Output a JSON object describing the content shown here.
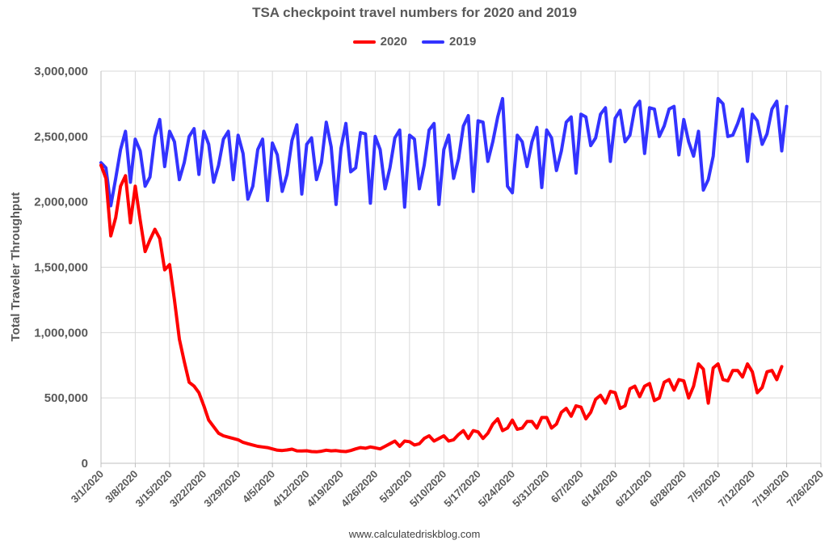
{
  "chart_data": {
    "type": "line",
    "title": "TSA checkpoint travel numbers for 2020 and 2019",
    "ylabel": "Total Traveler Throughput",
    "xlabel": "",
    "ylim": [
      0,
      3000000
    ],
    "yticks": [
      0,
      500000,
      1000000,
      1500000,
      2000000,
      2500000,
      3000000
    ],
    "ytick_labels": [
      "0",
      "500,000",
      "1,000,000",
      "1,500,000",
      "2,000,000",
      "2,500,000",
      "3,000,000"
    ],
    "xticks": [
      "3/1/2020",
      "3/8/2020",
      "3/15/2020",
      "3/22/2020",
      "3/29/2020",
      "4/5/2020",
      "4/12/2020",
      "4/19/2020",
      "4/26/2020",
      "5/3/2020",
      "5/10/2020",
      "5/17/2020",
      "5/24/2020",
      "5/31/2020",
      "6/7/2020",
      "6/14/2020",
      "6/21/2020",
      "6/28/2020",
      "7/5/2020",
      "7/12/2020",
      "7/19/2020",
      "7/26/2020"
    ],
    "x_start": "3/1/2020",
    "x_end": "7/26/2020",
    "grid": true,
    "legend_position": "top-center",
    "series": [
      {
        "name": "2020",
        "color": "#ff0000",
        "values": [
          2280000,
          2180000,
          1740000,
          1880000,
          2120000,
          2200000,
          1840000,
          2120000,
          1860000,
          1620000,
          1710000,
          1790000,
          1720000,
          1480000,
          1520000,
          1250000,
          950000,
          780000,
          620000,
          590000,
          540000,
          440000,
          330000,
          280000,
          230000,
          210000,
          200000,
          190000,
          180000,
          160000,
          150000,
          140000,
          130000,
          125000,
          120000,
          110000,
          100000,
          98000,
          102000,
          108000,
          95000,
          94000,
          96000,
          90000,
          88000,
          92000,
          100000,
          95000,
          97000,
          92000,
          90000,
          98000,
          110000,
          120000,
          115000,
          125000,
          118000,
          110000,
          130000,
          150000,
          170000,
          130000,
          170000,
          165000,
          140000,
          150000,
          190000,
          210000,
          170000,
          190000,
          210000,
          170000,
          180000,
          220000,
          250000,
          190000,
          250000,
          240000,
          190000,
          230000,
          300000,
          340000,
          250000,
          270000,
          330000,
          260000,
          270000,
          320000,
          320000,
          270000,
          350000,
          350000,
          270000,
          300000,
          390000,
          420000,
          360000,
          440000,
          430000,
          340000,
          390000,
          490000,
          520000,
          460000,
          550000,
          540000,
          420000,
          440000,
          570000,
          590000,
          510000,
          590000,
          610000,
          480000,
          500000,
          620000,
          640000,
          560000,
          640000,
          630000,
          500000,
          590000,
          760000,
          720000,
          460000,
          730000,
          760000,
          640000,
          630000,
          710000,
          710000,
          660000,
          760000,
          700000,
          540000,
          580000,
          700000,
          710000,
          640000,
          740000
        ]
      },
      {
        "name": "2019",
        "color": "#3333ff",
        "values": [
          2300000,
          2260000,
          1970000,
          2180000,
          2400000,
          2540000,
          2150000,
          2480000,
          2390000,
          2120000,
          2190000,
          2500000,
          2630000,
          2270000,
          2540000,
          2460000,
          2170000,
          2300000,
          2500000,
          2560000,
          2210000,
          2540000,
          2440000,
          2150000,
          2280000,
          2480000,
          2540000,
          2170000,
          2510000,
          2370000,
          2020000,
          2120000,
          2400000,
          2480000,
          2010000,
          2450000,
          2360000,
          2080000,
          2210000,
          2470000,
          2590000,
          2060000,
          2440000,
          2490000,
          2170000,
          2300000,
          2610000,
          2420000,
          1980000,
          2410000,
          2600000,
          2230000,
          2260000,
          2530000,
          2520000,
          1990000,
          2500000,
          2400000,
          2100000,
          2260000,
          2490000,
          2550000,
          1960000,
          2510000,
          2480000,
          2100000,
          2280000,
          2550000,
          2600000,
          1980000,
          2400000,
          2510000,
          2180000,
          2330000,
          2580000,
          2660000,
          2080000,
          2620000,
          2610000,
          2310000,
          2460000,
          2650000,
          2790000,
          2120000,
          2070000,
          2510000,
          2460000,
          2270000,
          2460000,
          2570000,
          2110000,
          2550000,
          2490000,
          2240000,
          2390000,
          2610000,
          2650000,
          2220000,
          2670000,
          2650000,
          2430000,
          2490000,
          2670000,
          2720000,
          2310000,
          2640000,
          2700000,
          2460000,
          2510000,
          2720000,
          2770000,
          2370000,
          2720000,
          2710000,
          2500000,
          2580000,
          2710000,
          2730000,
          2360000,
          2630000,
          2460000,
          2350000,
          2540000,
          2090000,
          2170000,
          2350000,
          2790000,
          2750000,
          2500000,
          2510000,
          2600000,
          2710000,
          2310000,
          2670000,
          2620000,
          2440000,
          2520000,
          2710000,
          2770000,
          2390000,
          2730000
        ]
      }
    ]
  },
  "source_text": "www.calculatedriskblog.com"
}
